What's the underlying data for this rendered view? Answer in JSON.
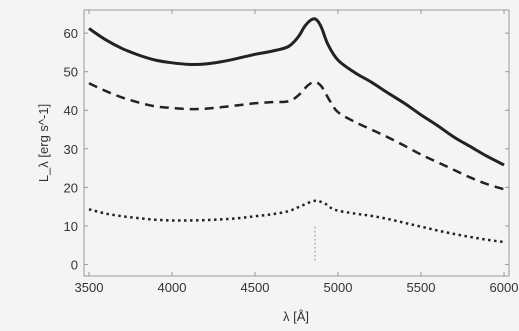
{
  "chart_data": {
    "type": "line",
    "title": "",
    "xlabel": "λ [Å]",
    "ylabel": "L_λ [erg s^-1]",
    "xlim": [
      3470,
      6030
    ],
    "ylim": [
      -3,
      66
    ],
    "xticks": [
      3500,
      4000,
      4500,
      5000,
      5500,
      6000
    ],
    "yticks": [
      0,
      10,
      20,
      30,
      40,
      50,
      60
    ],
    "grid": false,
    "legend": "none",
    "marker_line": {
      "x": 4861,
      "y": [
        1,
        10
      ]
    },
    "series": [
      {
        "style": "solid",
        "color": "#222222",
        "points": [
          [
            3500,
            61.2
          ],
          [
            3600,
            58.3
          ],
          [
            3700,
            56.0
          ],
          [
            3800,
            54.3
          ],
          [
            3900,
            53.0
          ],
          [
            4000,
            52.3
          ],
          [
            4100,
            51.9
          ],
          [
            4200,
            52.0
          ],
          [
            4300,
            52.6
          ],
          [
            4400,
            53.5
          ],
          [
            4500,
            54.5
          ],
          [
            4600,
            55.3
          ],
          [
            4700,
            56.5
          ],
          [
            4760,
            59.0
          ],
          [
            4800,
            61.8
          ],
          [
            4840,
            63.5
          ],
          [
            4870,
            63.5
          ],
          [
            4900,
            61.5
          ],
          [
            4940,
            57.0
          ],
          [
            5000,
            53.0
          ],
          [
            5100,
            49.8
          ],
          [
            5200,
            47.3
          ],
          [
            5300,
            44.5
          ],
          [
            5400,
            41.8
          ],
          [
            5500,
            38.8
          ],
          [
            5600,
            36.0
          ],
          [
            5700,
            33.0
          ],
          [
            5800,
            30.5
          ],
          [
            5900,
            28.0
          ],
          [
            6000,
            25.8
          ]
        ]
      },
      {
        "style": "dashed",
        "color": "#222222",
        "points": [
          [
            3500,
            47.0
          ],
          [
            3600,
            45.0
          ],
          [
            3700,
            43.3
          ],
          [
            3800,
            42.0
          ],
          [
            3900,
            41.0
          ],
          [
            4000,
            40.6
          ],
          [
            4100,
            40.3
          ],
          [
            4200,
            40.4
          ],
          [
            4300,
            40.8
          ],
          [
            4400,
            41.3
          ],
          [
            4500,
            41.8
          ],
          [
            4600,
            42.1
          ],
          [
            4700,
            42.3
          ],
          [
            4760,
            43.8
          ],
          [
            4820,
            46.5
          ],
          [
            4860,
            47.3
          ],
          [
            4900,
            46.2
          ],
          [
            4950,
            42.5
          ],
          [
            5000,
            39.5
          ],
          [
            5100,
            37.0
          ],
          [
            5200,
            35.0
          ],
          [
            5300,
            33.0
          ],
          [
            5400,
            30.8
          ],
          [
            5500,
            28.5
          ],
          [
            5600,
            26.5
          ],
          [
            5700,
            24.5
          ],
          [
            5800,
            22.5
          ],
          [
            5900,
            20.8
          ],
          [
            6000,
            19.5
          ]
        ]
      },
      {
        "style": "dotted",
        "color": "#222222",
        "points": [
          [
            3500,
            14.3
          ],
          [
            3600,
            13.2
          ],
          [
            3700,
            12.5
          ],
          [
            3800,
            12.0
          ],
          [
            3900,
            11.6
          ],
          [
            4000,
            11.4
          ],
          [
            4100,
            11.4
          ],
          [
            4200,
            11.5
          ],
          [
            4300,
            11.7
          ],
          [
            4400,
            12.0
          ],
          [
            4500,
            12.5
          ],
          [
            4600,
            13.0
          ],
          [
            4700,
            13.8
          ],
          [
            4780,
            15.2
          ],
          [
            4860,
            16.5
          ],
          [
            4920,
            15.8
          ],
          [
            4980,
            14.2
          ],
          [
            5100,
            13.2
          ],
          [
            5200,
            12.6
          ],
          [
            5300,
            11.8
          ],
          [
            5400,
            10.8
          ],
          [
            5500,
            9.8
          ],
          [
            5600,
            8.8
          ],
          [
            5700,
            7.9
          ],
          [
            5800,
            7.1
          ],
          [
            5900,
            6.4
          ],
          [
            6000,
            5.8
          ]
        ]
      }
    ]
  }
}
